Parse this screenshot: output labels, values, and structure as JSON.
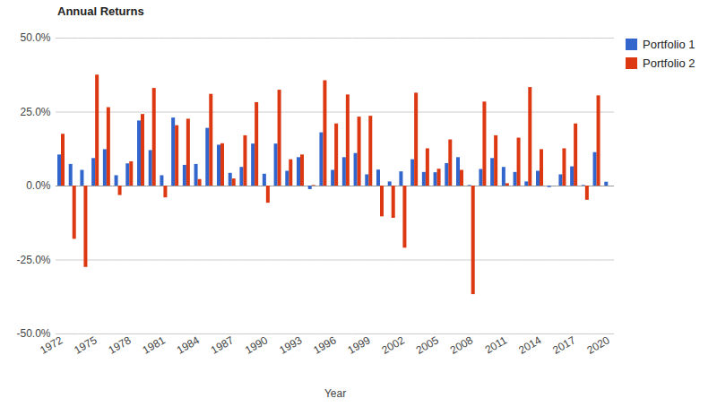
{
  "chart_data": {
    "type": "bar",
    "title": "Annual Returns",
    "x_label": "Year",
    "categories": [
      "1972",
      null,
      null,
      "1975",
      null,
      null,
      "1978",
      null,
      null,
      "1981",
      null,
      null,
      "1984",
      null,
      null,
      "1987",
      null,
      null,
      "1990",
      null,
      null,
      "1993",
      null,
      null,
      "1996",
      null,
      null,
      "1999",
      null,
      null,
      "2002",
      null,
      null,
      "2005",
      null,
      null,
      "2008",
      null,
      null,
      "2011",
      null,
      null,
      "2014",
      null,
      null,
      "2017",
      null,
      null,
      "2020"
    ],
    "series": [
      {
        "name": "Portfolio 1",
        "color": "#3366cc",
        "values": [
          10.5,
          7.3,
          5.3,
          9.3,
          12.3,
          3.5,
          7.5,
          22,
          12,
          3.5,
          23,
          7,
          7.3,
          19.5,
          13.8,
          4.3,
          6.3,
          14.2,
          4,
          14.2,
          5,
          9.6,
          -1.2,
          18,
          5.3,
          9.6,
          11,
          3.8,
          5.4,
          1.4,
          4.8,
          8.9,
          4.6,
          4.5,
          7.6,
          9.6,
          0.2,
          5.6,
          9.3,
          6.3,
          4.6,
          1.4,
          5,
          -0.5,
          3.8,
          6.5,
          0.2,
          11.3,
          1.3
        ]
      },
      {
        "name": "Portfolio 2",
        "color": "#dc3912",
        "values": [
          17.5,
          -18,
          -27.5,
          37.5,
          26.5,
          -3.2,
          8.2,
          24.2,
          33,
          -4,
          20.4,
          22.6,
          2.2,
          31,
          14.3,
          2.4,
          17,
          28.2,
          -5.8,
          32.4,
          8.9,
          10.5,
          0.2,
          35.6,
          21,
          30.8,
          23.3,
          23.6,
          -10.4,
          -10.9,
          -21,
          31.4,
          12.6,
          5.7,
          15.6,
          5.3,
          -36.7,
          28.4,
          17,
          0.8,
          16.2,
          33.3,
          12.3,
          0,
          12.6,
          21,
          -4.8,
          30.5,
          null
        ]
      }
    ],
    "ylim": [
      -50,
      50
    ],
    "yticks": [
      {
        "value": -50,
        "label": "-50.0%"
      },
      {
        "value": -25,
        "label": "-25.0%"
      },
      {
        "value": 0,
        "label": "0.0%"
      },
      {
        "value": 25,
        "label": "25.0%"
      },
      {
        "value": 50,
        "label": "50.0%"
      }
    ],
    "grid": true,
    "legend": "right"
  }
}
